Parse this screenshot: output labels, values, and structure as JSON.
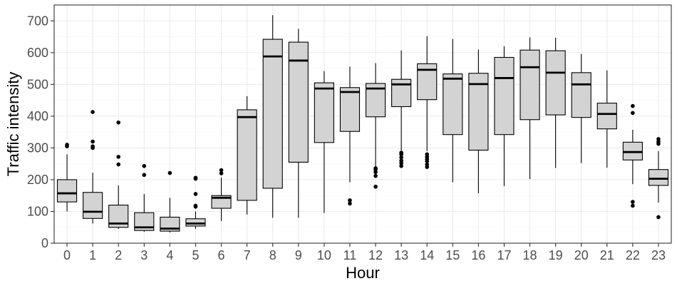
{
  "chart_data": {
    "type": "boxplot",
    "xlabel": "Hour",
    "ylabel": "Traffic intensity",
    "ylim": [
      0,
      750
    ],
    "yticks": [
      0,
      100,
      200,
      300,
      400,
      500,
      600,
      700
    ],
    "grid": true,
    "theme": "bw",
    "colors": {
      "box_fill": "#d3d3d3",
      "outline": "#000000",
      "grid_major": "#ebebeb",
      "grid_minor": "#f5f5f5"
    },
    "boxes": [
      {
        "x": "0",
        "whisker_low": 100,
        "q1": 130,
        "median": 157,
        "q3": 200,
        "whisker_high": 280,
        "outliers": [
          305,
          310
        ]
      },
      {
        "x": "1",
        "whisker_low": 62,
        "q1": 78,
        "median": 99,
        "q3": 160,
        "whisker_high": 222,
        "outliers": [
          300,
          305,
          320,
          413
        ]
      },
      {
        "x": "2",
        "whisker_low": 45,
        "q1": 50,
        "median": 62,
        "q3": 120,
        "whisker_high": 182,
        "outliers": [
          248,
          272,
          380
        ]
      },
      {
        "x": "3",
        "whisker_low": 36,
        "q1": 40,
        "median": 50,
        "q3": 96,
        "whisker_high": 155,
        "outliers": [
          215,
          243
        ]
      },
      {
        "x": "4",
        "whisker_low": 34,
        "q1": 38,
        "median": 46,
        "q3": 82,
        "whisker_high": 143,
        "outliers": [
          221
        ]
      },
      {
        "x": "5",
        "whisker_low": 45,
        "q1": 54,
        "median": 62,
        "q3": 77,
        "whisker_high": 100,
        "outliers": [
          115,
          118,
          155,
          203,
          206
        ]
      },
      {
        "x": "6",
        "whisker_low": 70,
        "q1": 110,
        "median": 143,
        "q3": 150,
        "whisker_high": 207,
        "outliers": [
          220,
          230
        ]
      },
      {
        "x": "7",
        "whisker_low": 90,
        "q1": 135,
        "median": 397,
        "q3": 420,
        "whisker_high": 463,
        "outliers": []
      },
      {
        "x": "8",
        "whisker_low": 80,
        "q1": 173,
        "median": 588,
        "q3": 642,
        "whisker_high": 718,
        "outliers": []
      },
      {
        "x": "9",
        "whisker_low": 80,
        "q1": 255,
        "median": 575,
        "q3": 633,
        "whisker_high": 675,
        "outliers": []
      },
      {
        "x": "10",
        "whisker_low": 95,
        "q1": 317,
        "median": 487,
        "q3": 505,
        "whisker_high": 542,
        "outliers": []
      },
      {
        "x": "11",
        "whisker_low": 192,
        "q1": 352,
        "median": 476,
        "q3": 490,
        "whisker_high": 556,
        "outliers": [
          125,
          135
        ]
      },
      {
        "x": "12",
        "whisker_low": 240,
        "q1": 398,
        "median": 487,
        "q3": 503,
        "whisker_high": 567,
        "outliers": [
          178,
          212,
          224,
          232,
          236
        ]
      },
      {
        "x": "13",
        "whisker_low": 292,
        "q1": 430,
        "median": 500,
        "q3": 516,
        "whisker_high": 607,
        "outliers": [
          243,
          252,
          260,
          270,
          280,
          285
        ]
      },
      {
        "x": "14",
        "whisker_low": 290,
        "q1": 452,
        "median": 546,
        "q3": 565,
        "whisker_high": 652,
        "outliers": [
          240,
          248,
          258,
          265,
          272,
          280
        ]
      },
      {
        "x": "15",
        "whisker_low": 192,
        "q1": 342,
        "median": 518,
        "q3": 533,
        "whisker_high": 643,
        "outliers": []
      },
      {
        "x": "16",
        "whisker_low": 157,
        "q1": 293,
        "median": 501,
        "q3": 535,
        "whisker_high": 610,
        "outliers": []
      },
      {
        "x": "17",
        "whisker_low": 180,
        "q1": 342,
        "median": 520,
        "q3": 585,
        "whisker_high": 620,
        "outliers": []
      },
      {
        "x": "18",
        "whisker_low": 202,
        "q1": 389,
        "median": 554,
        "q3": 608,
        "whisker_high": 648,
        "outliers": []
      },
      {
        "x": "19",
        "whisker_low": 237,
        "q1": 404,
        "median": 537,
        "q3": 606,
        "whisker_high": 647,
        "outliers": []
      },
      {
        "x": "20",
        "whisker_low": 252,
        "q1": 396,
        "median": 500,
        "q3": 537,
        "whisker_high": 596,
        "outliers": []
      },
      {
        "x": "21",
        "whisker_low": 238,
        "q1": 360,
        "median": 407,
        "q3": 441,
        "whisker_high": 544,
        "outliers": []
      },
      {
        "x": "22",
        "whisker_low": 186,
        "q1": 262,
        "median": 287,
        "q3": 318,
        "whisker_high": 357,
        "outliers": [
          118,
          130,
          410,
          432
        ]
      },
      {
        "x": "23",
        "whisker_low": 128,
        "q1": 182,
        "median": 203,
        "q3": 232,
        "whisker_high": 290,
        "outliers": [
          82,
          313,
          320,
          328
        ]
      }
    ]
  }
}
